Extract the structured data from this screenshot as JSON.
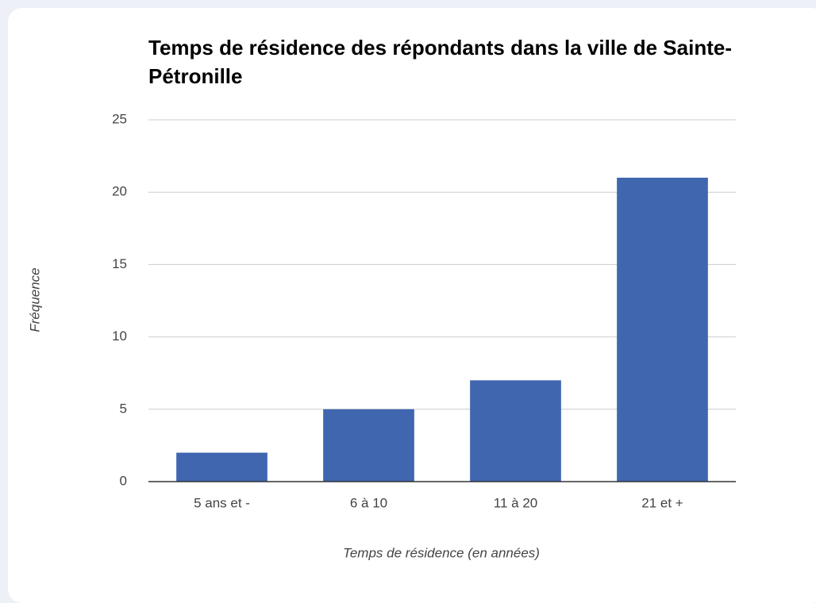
{
  "chart_data": {
    "type": "bar",
    "title": "Temps de résidence des répondants dans la ville de Sainte-Pétronille",
    "x_label": "Temps de résidence (en années)",
    "y_label": "Fréquence",
    "categories": [
      "5 ans et -",
      "6 à 10",
      "11 à 20",
      "21 et +"
    ],
    "values": [
      2,
      5,
      7,
      21
    ],
    "color": "#4066b0",
    "ylim": [
      0,
      25
    ],
    "yticks": [
      0,
      5,
      10,
      15,
      20,
      25
    ],
    "grid": true
  }
}
